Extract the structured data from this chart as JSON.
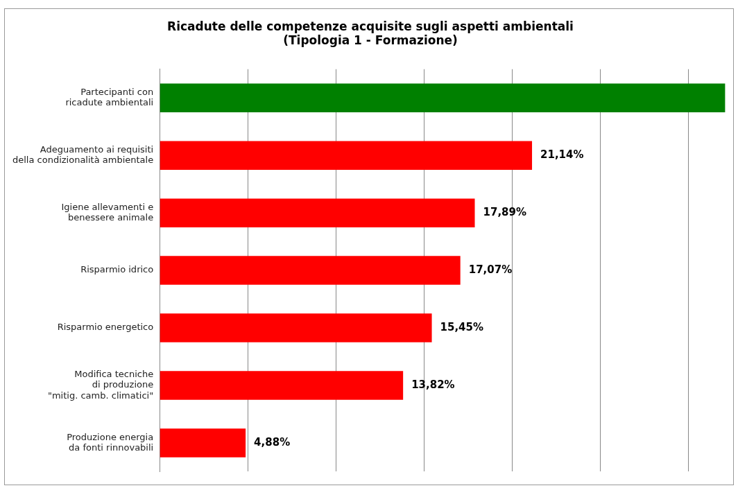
{
  "chart_data": {
    "type": "bar",
    "orientation": "horizontal",
    "title": "Ricadute delle competenze acquisite sugli aspetti ambientali\n(Tipologia 1 - Formazione)",
    "categories": [
      "Partecipanti con\nricadute ambientali",
      "Adeguamento ai requisiti\ndella condizionalità ambientale",
      "Igiene allevamenti e\nbenessere animale",
      "Risparmio idrico",
      "Risparmio energetico",
      "Modifica tecniche\ndi produzione\n\"mitig. camb. climatici\"",
      "Produzione energia\nda fonti rinnovabili"
    ],
    "values": [
      32.1,
      21.14,
      17.89,
      17.07,
      15.45,
      13.82,
      4.88
    ],
    "colors": [
      "#008000",
      "#ff0000",
      "#ff0000",
      "#ff0000",
      "#ff0000",
      "#ff0000",
      "#ff0000"
    ],
    "value_labels": [
      null,
      "21,14%",
      "17,89%",
      "17,07%",
      "15,45%",
      "13,82%",
      "4,88%"
    ],
    "xlim": [
      0,
      32.4
    ],
    "xticks": [
      {
        "value": 0,
        "label": null
      },
      {
        "value": 5,
        "label": null
      },
      {
        "value": 10,
        "label": null
      },
      {
        "value": 15,
        "label": null
      },
      {
        "value": 20,
        "label": null
      },
      {
        "value": 25,
        "label": null
      },
      {
        "value": 30,
        "label": null
      }
    ],
    "grid": "x",
    "tick_labels": "y",
    "legend": false
  }
}
